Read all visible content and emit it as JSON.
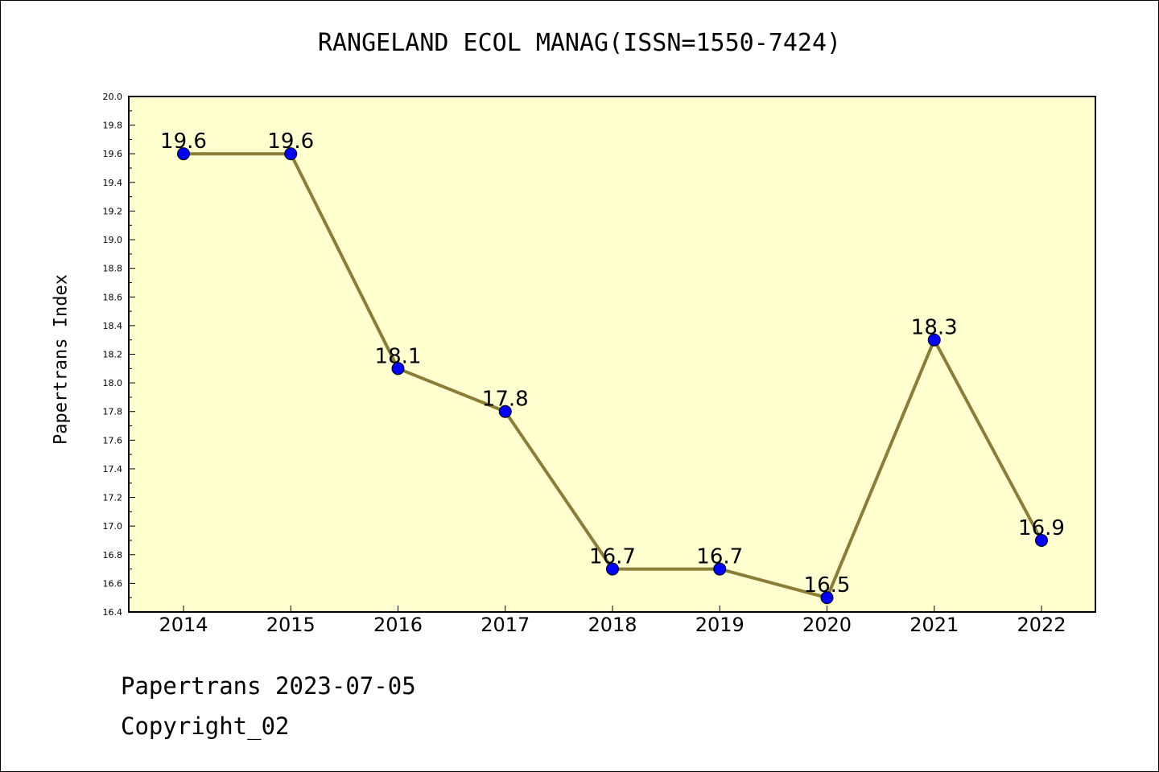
{
  "title": "RANGELAND ECOL MANAG(ISSN=1550-7424)",
  "footer": {
    "line1": "Papertrans 2023-07-05",
    "line2": "Copyright_02"
  },
  "colors": {
    "plot_background": "#ffffd0",
    "line": "#8b7d35",
    "marker": "#0000ff"
  },
  "chart_data": {
    "type": "line",
    "title": "RANGELAND ECOL MANAG(ISSN=1550-7424)",
    "xlabel": "",
    "ylabel": "Papertrans Index",
    "categories": [
      "2014",
      "2015",
      "2016",
      "2017",
      "2018",
      "2019",
      "2020",
      "2021",
      "2022"
    ],
    "series": [
      {
        "values": [
          19.6,
          19.6,
          18.1,
          17.8,
          16.7,
          16.7,
          16.5,
          18.3,
          16.9
        ]
      }
    ],
    "data_labels": [
      "19.6",
      "19.6",
      "18.1",
      "17.8",
      "16.7",
      "16.7",
      "16.5",
      "18.3",
      "16.9"
    ],
    "ylim": [
      16.4,
      20.0
    ],
    "yticks": [
      "16.4",
      "16.6",
      "16.8",
      "17.0",
      "17.2",
      "17.4",
      "17.6",
      "17.8",
      "18.0",
      "18.2",
      "18.4",
      "18.6",
      "18.8",
      "19.0",
      "19.2",
      "19.4",
      "19.6",
      "19.8",
      "20.0"
    ],
    "grid": false,
    "legend": "none"
  }
}
